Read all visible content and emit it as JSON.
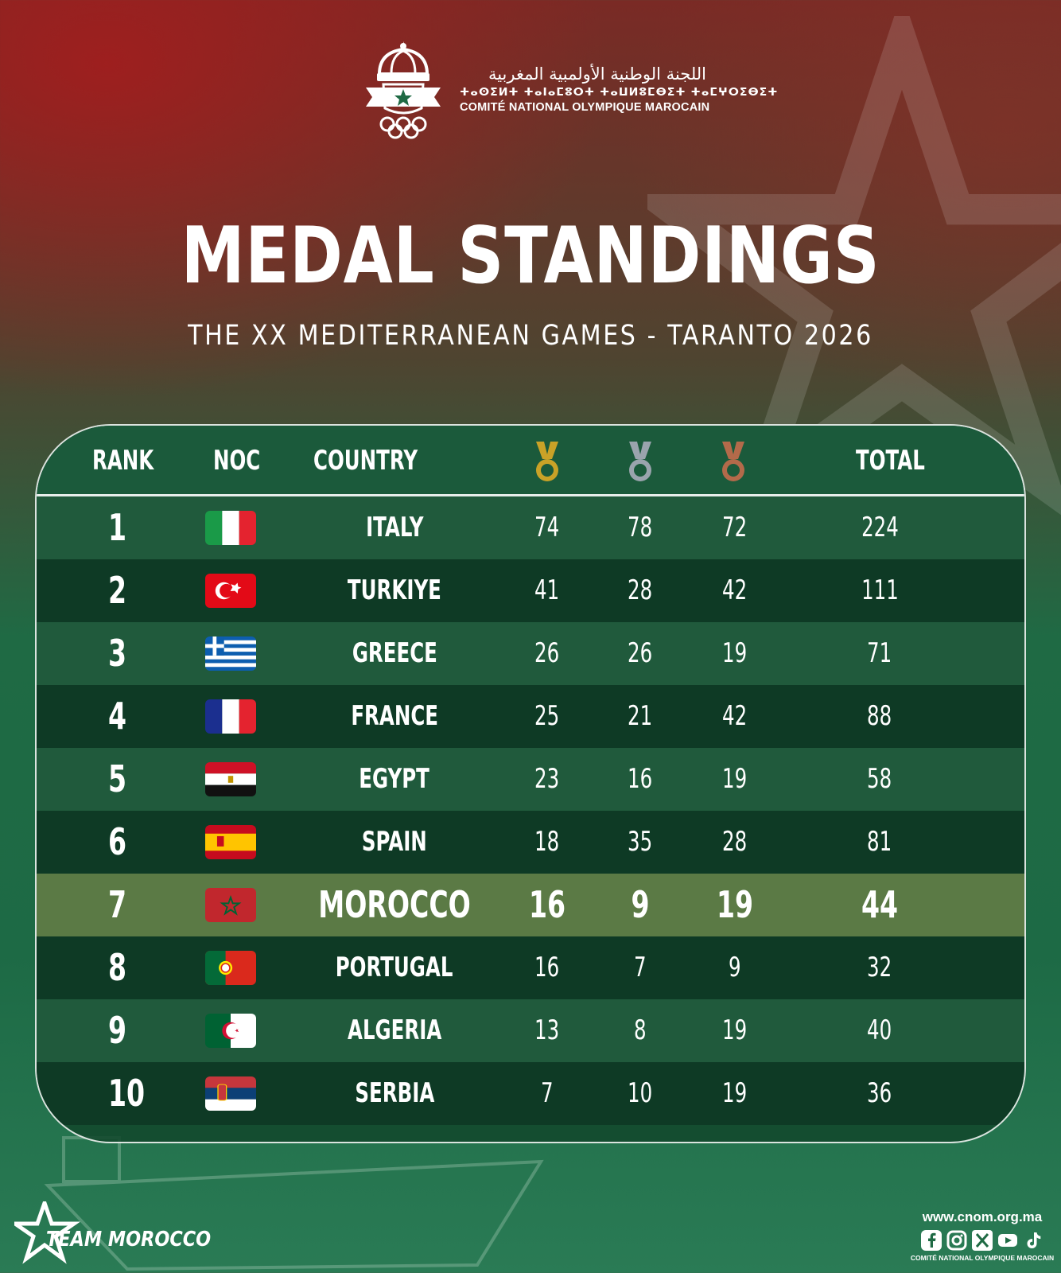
{
  "header": {
    "org_name_ar": "اللجنة الوطنية الأولمبية المغربية",
    "org_name_tifinagh": "ⵜⴰⵙⵉⵍⵜ ⵜⴰⵏⴰⵎⵓⵔⵜ ⵜⴰⵡⵍⵓⵎⴱⵉⵜ ⵜⴰⵎⵖⵔⵉⴱⵉⵜ",
    "org_name_fr": "COMITÉ NATIONAL OLYMPIQUE MAROCAIN",
    "title": "MEDAL STANDINGS",
    "subtitle": "THE XX MEDITERRANEAN GAMES - TARANTO 2026"
  },
  "table": {
    "columns": {
      "rank": "RANK",
      "noc": "NOC",
      "country": "COUNTRY",
      "gold_icon": "gold-medal-icon",
      "silver_icon": "silver-medal-icon",
      "bronze_icon": "bronze-medal-icon",
      "total": "TOTAL"
    },
    "rows": [
      {
        "rank": "1",
        "flag": "italy-flag-icon",
        "country": "ITALY",
        "gold": "74",
        "silver": "78",
        "bronze": "72",
        "total": "224"
      },
      {
        "rank": "2",
        "flag": "turkiye-flag-icon",
        "country": "TURKIYE",
        "gold": "41",
        "silver": "28",
        "bronze": "42",
        "total": "111"
      },
      {
        "rank": "3",
        "flag": "greece-flag-icon",
        "country": "GREECE",
        "gold": "26",
        "silver": "26",
        "bronze": "19",
        "total": "71"
      },
      {
        "rank": "4",
        "flag": "france-flag-icon",
        "country": "FRANCE",
        "gold": "25",
        "silver": "21",
        "bronze": "42",
        "total": "88"
      },
      {
        "rank": "5",
        "flag": "egypt-flag-icon",
        "country": "EGYPT",
        "gold": "23",
        "silver": "16",
        "bronze": "19",
        "total": "58"
      },
      {
        "rank": "6",
        "flag": "spain-flag-icon",
        "country": "SPAIN",
        "gold": "18",
        "silver": "35",
        "bronze": "28",
        "total": "81"
      },
      {
        "rank": "7",
        "flag": "morocco-flag-icon",
        "country": "MOROCCO",
        "gold": "16",
        "silver": "9",
        "bronze": "19",
        "total": "44"
      },
      {
        "rank": "8",
        "flag": "portugal-flag-icon",
        "country": "PORTUGAL",
        "gold": "16",
        "silver": "7",
        "bronze": "9",
        "total": "32"
      },
      {
        "rank": "9",
        "flag": "algeria-flag-icon",
        "country": "ALGERIA",
        "gold": "13",
        "silver": "8",
        "bronze": "19",
        "total": "40"
      },
      {
        "rank": "10",
        "flag": "serbia-flag-icon",
        "country": "SERBIA",
        "gold": "7",
        "silver": "10",
        "bronze": "19",
        "total": "36"
      }
    ]
  },
  "footer": {
    "team": "TEAM MOROCCO",
    "website": "www.cnom.org.ma",
    "site_org": "COMITÉ NATIONAL OLYMPIQUE MAROCAIN",
    "social_icons": [
      "facebook-icon",
      "instagram-icon",
      "x-icon",
      "youtube-icon",
      "tiktok-icon"
    ]
  },
  "colors": {
    "highlight_row": "#5b7a45",
    "row_light": "#205a3c",
    "row_dark": "#0e3a25",
    "gold": "#c9a227",
    "silver": "#9aa4ad",
    "bronze": "#b36a4a"
  }
}
